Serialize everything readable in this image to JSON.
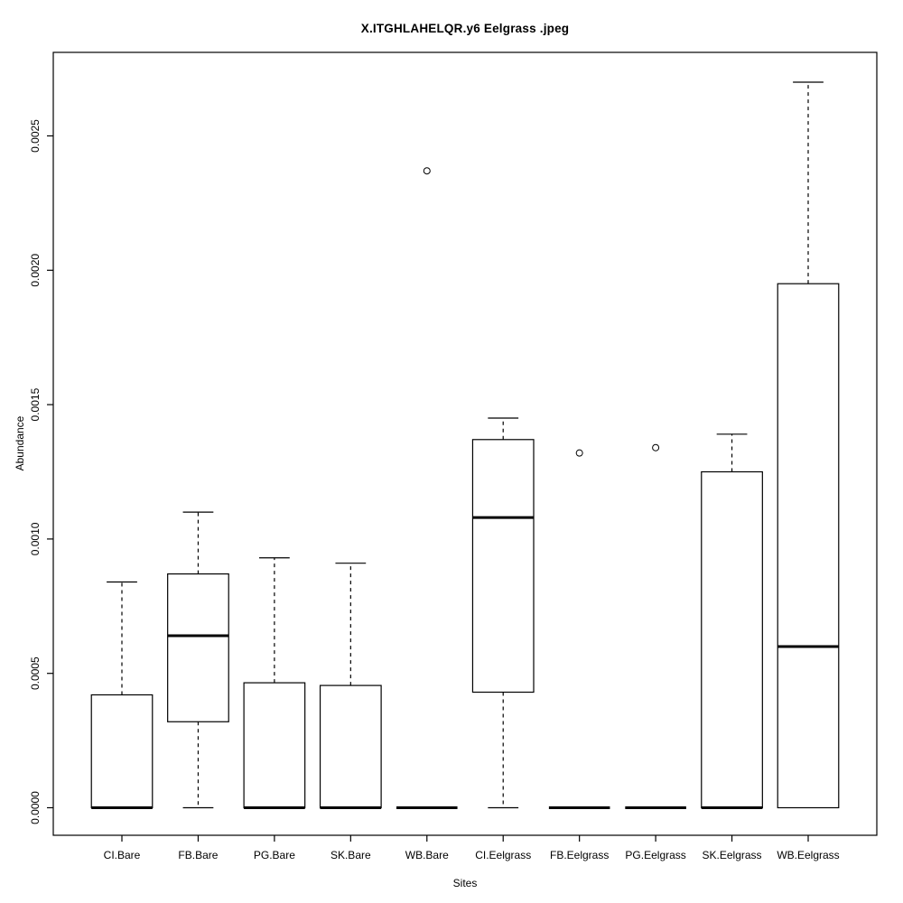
{
  "title": "X.ITGHLAHELQR.y6 Eelgrass .jpeg",
  "chart_data": {
    "type": "boxplot",
    "title": "X.ITGHLAHELQR.y6 Eelgrass .jpeg",
    "xlabel": "Sites",
    "ylabel": "Abundance",
    "ylim": [
      0.0,
      0.00272
    ],
    "yticks": [
      "0.0000",
      "0.0005",
      "0.0010",
      "0.0015",
      "0.0020",
      "0.0025"
    ],
    "grid": false,
    "legend": null,
    "categories": [
      "CI.Bare",
      "FB.Bare",
      "PG.Bare",
      "SK.Bare",
      "WB.Bare",
      "CI.Eelgrass",
      "FB.Eelgrass",
      "PG.Eelgrass",
      "SK.Eelgrass",
      "WB.Eelgrass"
    ],
    "series": [
      {
        "category": "CI.Bare",
        "whisker_low": 0.0,
        "q1": 0.0,
        "median": 0.0,
        "q3": 0.00042,
        "whisker_high": 0.00084,
        "outliers": []
      },
      {
        "category": "FB.Bare",
        "whisker_low": 0.0,
        "q1": 0.00032,
        "median": 0.00064,
        "q3": 0.00087,
        "whisker_high": 0.0011,
        "outliers": []
      },
      {
        "category": "PG.Bare",
        "whisker_low": 0.0,
        "q1": 0.0,
        "median": 0.0,
        "q3": 0.000465,
        "whisker_high": 0.00093,
        "outliers": []
      },
      {
        "category": "SK.Bare",
        "whisker_low": 0.0,
        "q1": 0.0,
        "median": 0.0,
        "q3": 0.000455,
        "whisker_high": 0.00091,
        "outliers": []
      },
      {
        "category": "WB.Bare",
        "whisker_low": 0.0,
        "q1": 0.0,
        "median": 0.0,
        "q3": 0.0,
        "whisker_high": 0.0,
        "outliers": [
          0.00237
        ]
      },
      {
        "category": "CI.Eelgrass",
        "whisker_low": 0.0,
        "q1": 0.00043,
        "median": 0.00108,
        "q3": 0.00137,
        "whisker_high": 0.00145,
        "outliers": []
      },
      {
        "category": "FB.Eelgrass",
        "whisker_low": 0.0,
        "q1": 0.0,
        "median": 0.0,
        "q3": 0.0,
        "whisker_high": 0.0,
        "outliers": [
          0.00132
        ]
      },
      {
        "category": "PG.Eelgrass",
        "whisker_low": 0.0,
        "q1": 0.0,
        "median": 0.0,
        "q3": 0.0,
        "whisker_high": 0.0,
        "outliers": [
          0.00134
        ]
      },
      {
        "category": "SK.Eelgrass",
        "whisker_low": 0.0,
        "q1": 0.0,
        "median": 0.0,
        "q3": 0.00125,
        "whisker_high": 0.00139,
        "outliers": []
      },
      {
        "category": "WB.Eelgrass",
        "whisker_low": 0.0,
        "q1": 0.0,
        "median": 0.0006,
        "q3": 0.00195,
        "whisker_high": 0.0027,
        "outliers": []
      }
    ],
    "colors": {
      "line": "#000000",
      "background": "#ffffff",
      "box_fill": "#ffffff"
    }
  }
}
